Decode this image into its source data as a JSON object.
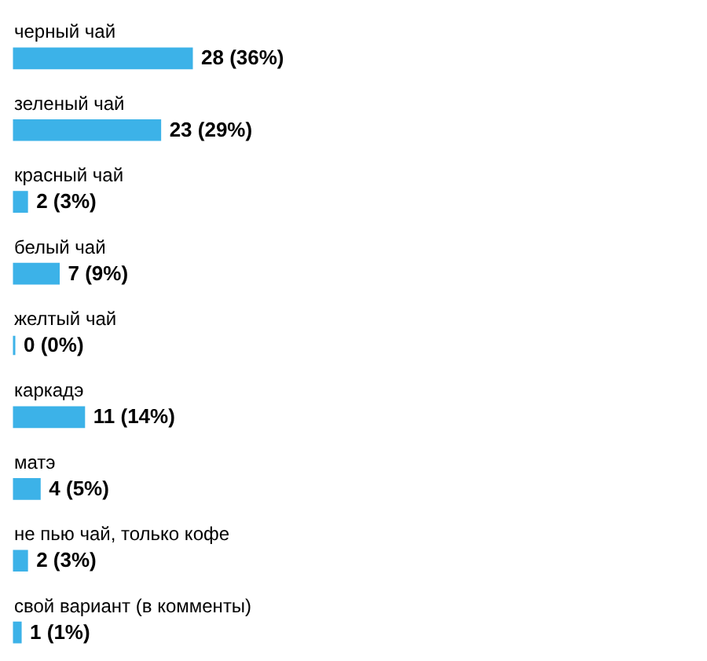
{
  "chart_data": {
    "type": "bar",
    "orientation": "horizontal",
    "categories": [
      "черный чай",
      "зеленый чай",
      "красный чай",
      "белый чай",
      "желтый чай",
      "каркадэ",
      "матэ",
      "не пью чай, только кофе",
      "свой вариант (в комменты)"
    ],
    "values": [
      28,
      23,
      2,
      7,
      0,
      11,
      4,
      2,
      1
    ],
    "value_labels": [
      "28 (36%)",
      "23 (29%)",
      "2 (3%)",
      "7 (9%)",
      "0 (0%)",
      "11 (14%)",
      "4 (5%)",
      "2 (3%)",
      "1 (1%)"
    ],
    "color": "#3cb2e8",
    "grid": false
  }
}
